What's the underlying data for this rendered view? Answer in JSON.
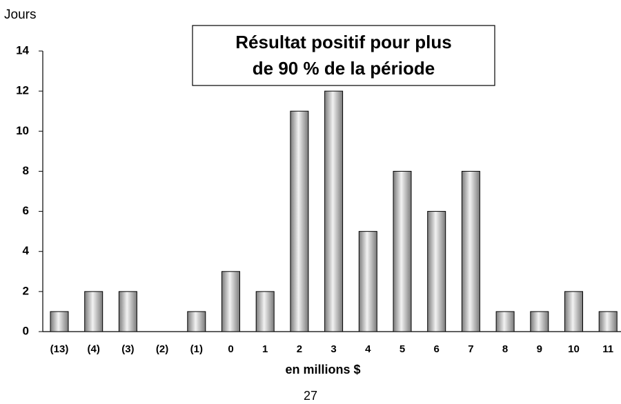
{
  "chart_data": {
    "type": "bar",
    "y_label": "Jours",
    "x_label": "en millions $",
    "annotation": [
      "Résultat positif pour plus",
      "de 90 % de la période"
    ],
    "page_number": "27",
    "categories": [
      "(13)",
      "(4)",
      "(3)",
      "(2)",
      "(1)",
      "0",
      "1",
      "2",
      "3",
      "4",
      "5",
      "6",
      "7",
      "8",
      "9",
      "10",
      "11"
    ],
    "values": [
      1,
      2,
      2,
      0,
      1,
      3,
      2,
      11,
      12,
      5,
      8,
      6,
      8,
      1,
      1,
      2,
      1
    ],
    "color": "#7a7a7a",
    "ylim": [
      0,
      14
    ],
    "yticks": [
      0,
      2,
      4,
      6,
      8,
      10,
      12,
      14
    ],
    "grid": false
  }
}
